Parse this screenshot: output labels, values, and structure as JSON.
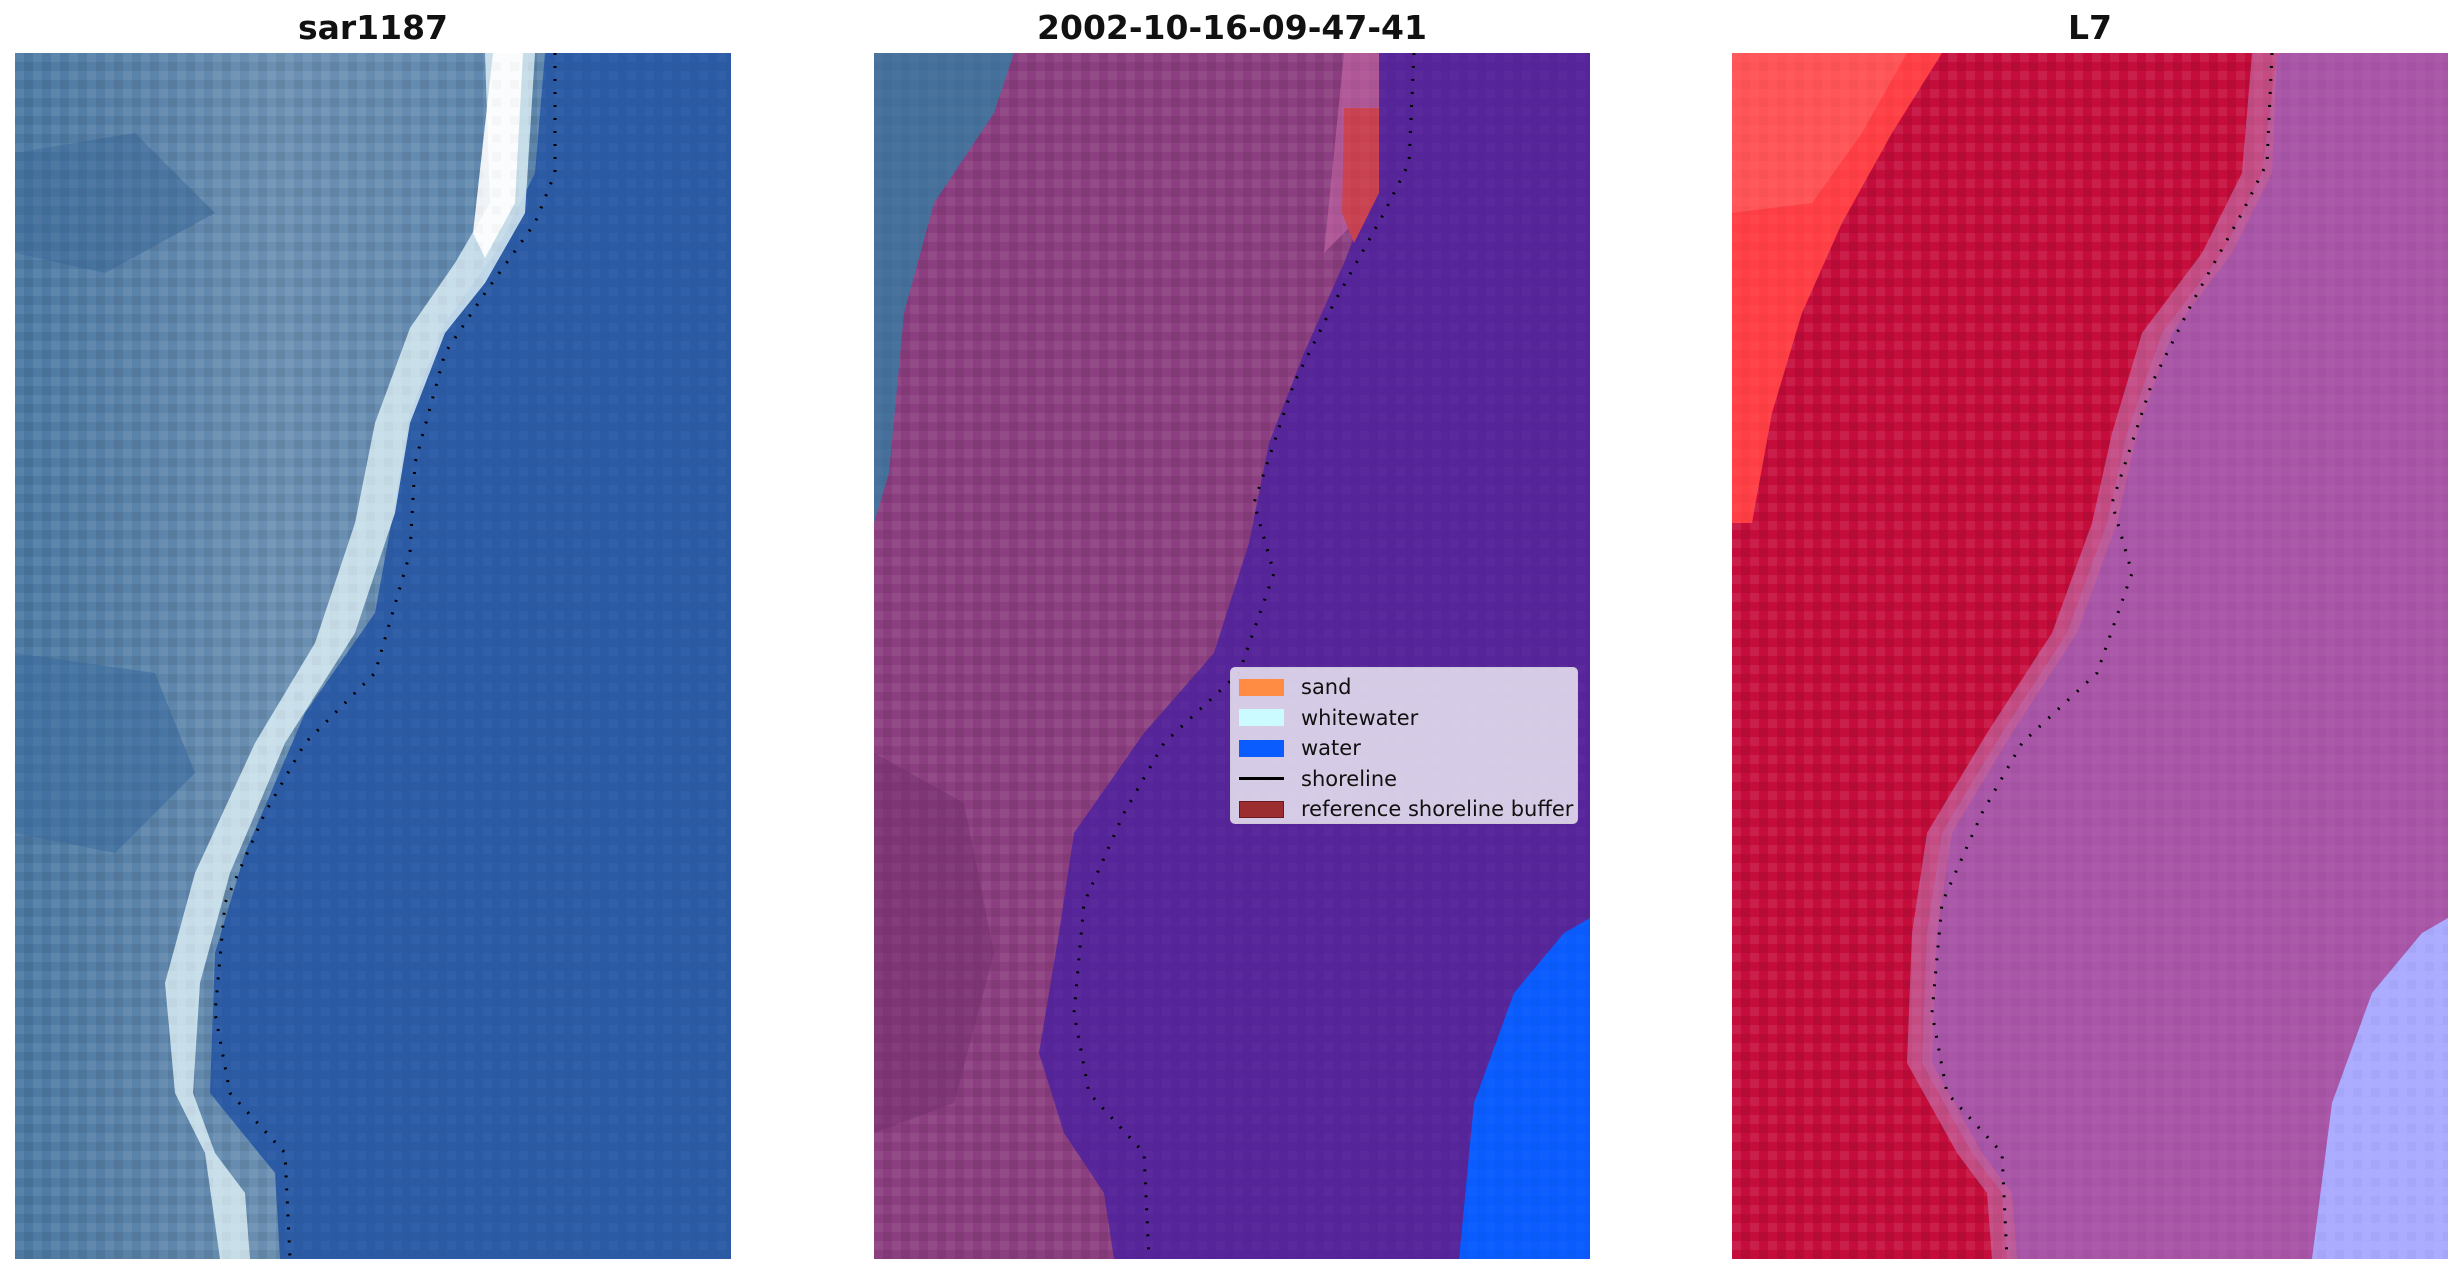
{
  "panels": [
    {
      "title": "sar1187",
      "icon": "rgb-satellite-image"
    },
    {
      "title": "2002-10-16-09-47-41",
      "icon": "classified-image-overlay"
    },
    {
      "title": "L7",
      "icon": "mndwi-index-image"
    }
  ],
  "legend": {
    "items": [
      {
        "label": "sand",
        "color": "#ff8c42"
      },
      {
        "label": "whitewater",
        "color": "#ccfbff"
      },
      {
        "label": "water",
        "color": "#0a5cff"
      },
      {
        "label": "shoreline",
        "color": "#000000"
      },
      {
        "label": "reference shoreline buffer",
        "color": "#9b2c30"
      }
    ]
  },
  "colors": {
    "ocean_rgb": "#2c5ba6",
    "land_rgb": "#5f87ab",
    "surf": "#d8ecf3",
    "land_classified": "#8b3f80",
    "water_classified": "#57259a",
    "land_index": "#c50d3b",
    "water_index": "#a956a8"
  }
}
